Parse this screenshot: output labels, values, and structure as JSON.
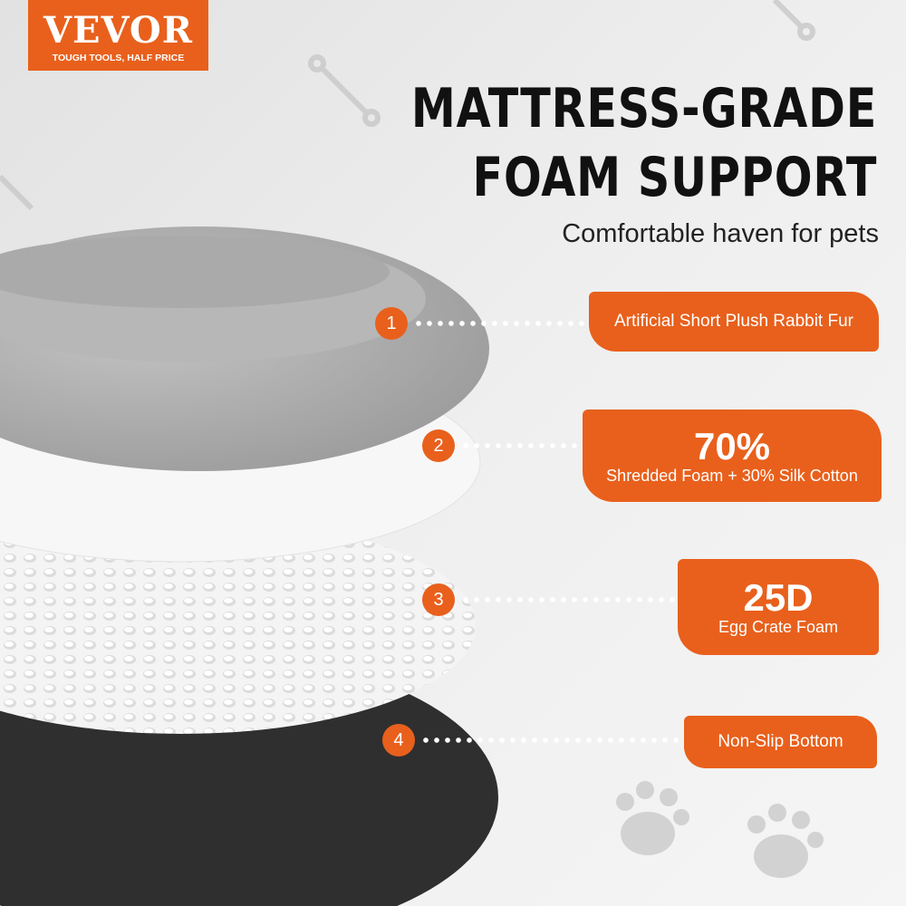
{
  "logo": {
    "brand": "VEVOR",
    "tagline": "TOUGH TOOLS, HALF PRICE"
  },
  "headline": {
    "line1": "MATTRESS-GRADE",
    "line2": "FOAM SUPPORT",
    "subtitle": "Comfortable haven for pets"
  },
  "colors": {
    "accent": "#e8601c",
    "fur": "#a9a9a9",
    "foam": "#f7f7f7",
    "bottom": "#2e2e2e"
  },
  "layers": [
    {
      "number": "1",
      "text": "Artificial Short Plush Rabbit Fur"
    },
    {
      "number": "2",
      "big": "70%",
      "text": "Shredded Foam + 30% Silk Cotton"
    },
    {
      "number": "3",
      "big": "25D",
      "text": "Egg Crate Foam"
    },
    {
      "number": "4",
      "text": "Non-Slip Bottom"
    }
  ],
  "decorations": [
    "bone-icon",
    "paw-icon"
  ]
}
